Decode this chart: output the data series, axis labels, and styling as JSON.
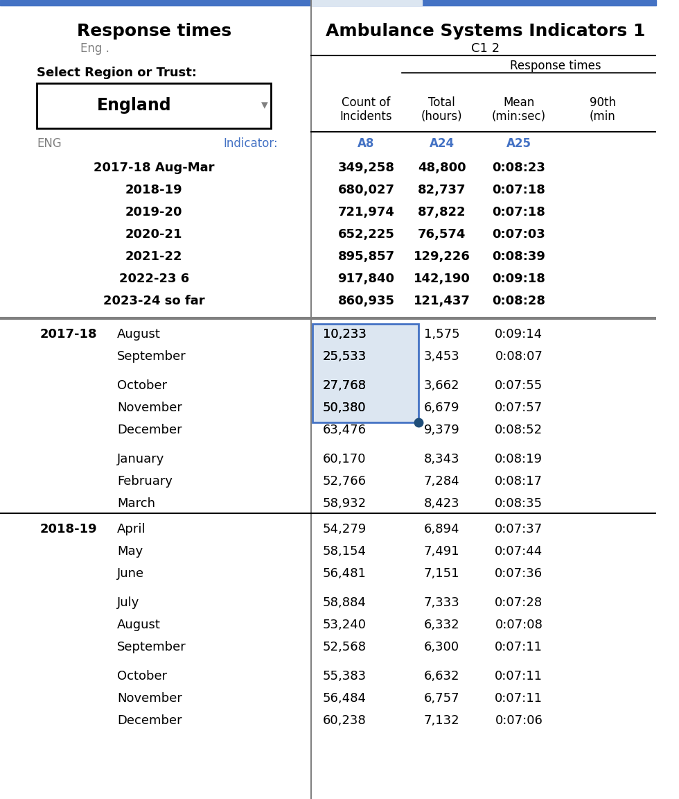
{
  "title_left": "Response times",
  "title_right": "Ambulance Systems Indicators 1",
  "subtitle_left": "Eng .",
  "subtitle_right": "C1 2",
  "region_label": "Select Region or Trust:",
  "region_value": "England",
  "response_times_label": "Response times",
  "indicator_label": "Indicator:",
  "eng_label": "ENG",
  "col_headers": [
    "Count of\nIncidents",
    "Total\n(hours)",
    "Mean\n(min:sec)",
    "90th\n(min"
  ],
  "col_indicators": [
    "A8",
    "A24",
    "A25",
    ""
  ],
  "summary_rows": [
    {
      "year": "2017-18 Aug-Mar",
      "count": "349,258",
      "total": "48,800",
      "mean": "0:08:23"
    },
    {
      "year": "2018-19",
      "count": "680,027",
      "total": "82,737",
      "mean": "0:07:18"
    },
    {
      "year": "2019-20",
      "count": "721,974",
      "total": "87,822",
      "mean": "0:07:18"
    },
    {
      "year": "2020-21",
      "count": "652,225",
      "total": "76,574",
      "mean": "0:07:03"
    },
    {
      "year": "2021-22",
      "count": "895,857",
      "total": "129,226",
      "mean": "0:08:39"
    },
    {
      "year": "2022-23 6",
      "count": "917,840",
      "total": "142,190",
      "mean": "0:09:18"
    },
    {
      "year": "2023-24 so far",
      "count": "860,935",
      "total": "121,437",
      "mean": "0:08:28"
    }
  ],
  "detail_groups": [
    {
      "year": "2017-18",
      "months": [
        {
          "month": "August",
          "count": "10,233",
          "total": "1,575",
          "mean": "0:09:14",
          "highlight": true
        },
        {
          "month": "September",
          "count": "25,533",
          "total": "3,453",
          "mean": "0:08:07",
          "highlight": true
        },
        {
          "month": "",
          "count": "",
          "total": "",
          "mean": "",
          "highlight": false
        },
        {
          "month": "October",
          "count": "27,768",
          "total": "3,662",
          "mean": "0:07:55",
          "highlight": true
        },
        {
          "month": "November",
          "count": "50,380",
          "total": "6,679",
          "mean": "0:07:57",
          "highlight": true
        },
        {
          "month": "December",
          "count": "63,476",
          "total": "9,379",
          "mean": "0:08:52",
          "highlight": false
        },
        {
          "month": "",
          "count": "",
          "total": "",
          "mean": "",
          "highlight": false
        },
        {
          "month": "January",
          "count": "60,170",
          "total": "8,343",
          "mean": "0:08:19",
          "highlight": false
        },
        {
          "month": "February",
          "count": "52,766",
          "total": "7,284",
          "mean": "0:08:17",
          "highlight": false
        },
        {
          "month": "March",
          "count": "58,932",
          "total": "8,423",
          "mean": "0:08:35",
          "highlight": false
        }
      ]
    },
    {
      "year": "2018-19",
      "months": [
        {
          "month": "April",
          "count": "54,279",
          "total": "6,894",
          "mean": "0:07:37",
          "highlight": false
        },
        {
          "month": "May",
          "count": "58,154",
          "total": "7,491",
          "mean": "0:07:44",
          "highlight": false
        },
        {
          "month": "June",
          "count": "56,481",
          "total": "7,151",
          "mean": "0:07:36",
          "highlight": false
        },
        {
          "month": "",
          "count": "",
          "total": "",
          "mean": "",
          "highlight": false
        },
        {
          "month": "July",
          "count": "58,884",
          "total": "7,333",
          "mean": "0:07:28",
          "highlight": false
        },
        {
          "month": "August",
          "count": "53,240",
          "total": "6,332",
          "mean": "0:07:08",
          "highlight": false
        },
        {
          "month": "September",
          "count": "52,568",
          "total": "6,300",
          "mean": "0:07:11",
          "highlight": false
        },
        {
          "month": "",
          "count": "",
          "total": "",
          "mean": "",
          "highlight": false
        },
        {
          "month": "October",
          "count": "55,383",
          "total": "6,632",
          "mean": "0:07:11",
          "highlight": false
        },
        {
          "month": "November",
          "count": "56,484",
          "total": "6,757",
          "mean": "0:07:11",
          "highlight": false
        },
        {
          "month": "December",
          "count": "60,238",
          "total": "7,132",
          "mean": "0:07:06",
          "highlight": false
        }
      ]
    }
  ],
  "colors": {
    "header_bg": "#ffffff",
    "title_right_bg": "#ffffff",
    "highlight_cell_bg": "#dce6f1",
    "highlight_cell_border": "#4472c4",
    "indicator_color": "#4472c4",
    "dot_color": "#1f4e79",
    "separator_color": "#808080",
    "text_color": "#000000",
    "subtitle_color": "#808080",
    "header_line_color": "#000000",
    "top_bar_color": "#4472c4",
    "top_bar_bg": "#dce6f1"
  }
}
